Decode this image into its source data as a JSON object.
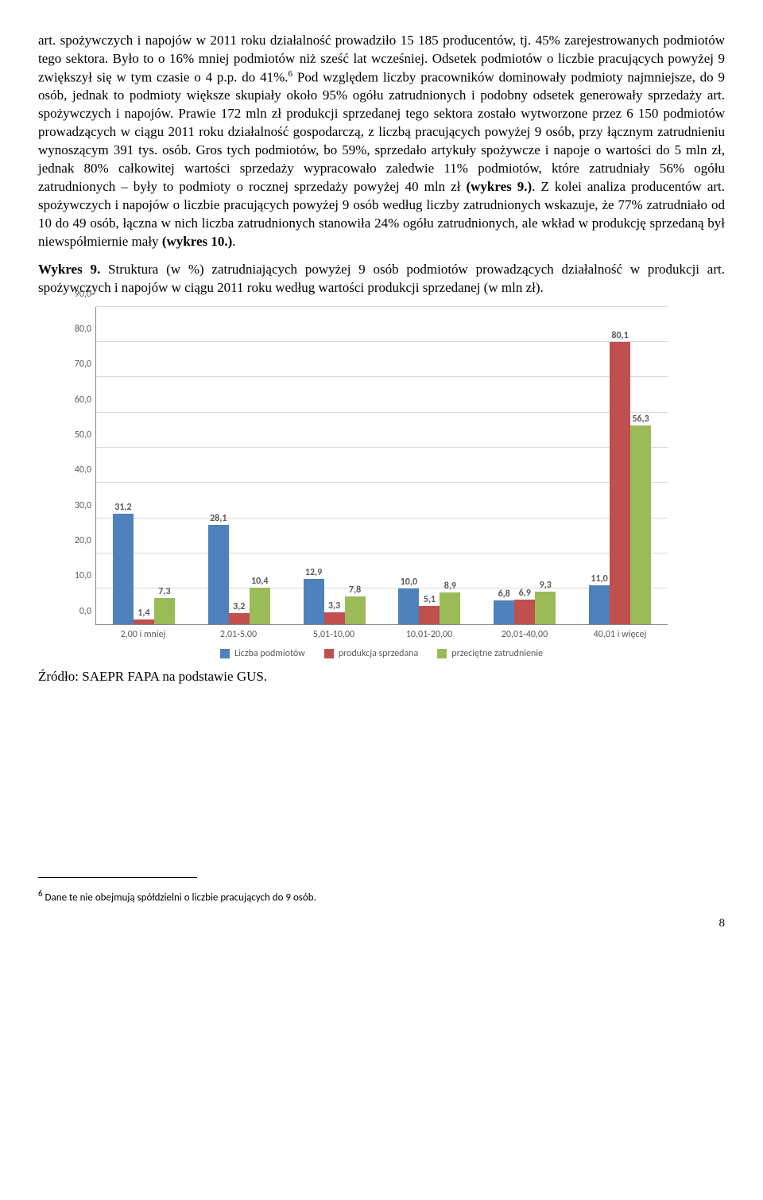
{
  "paragraphs": {
    "p1_a": "art. spożywczych i napojów w 2011 roku działalność prowadziło 15 185 producentów, tj. 45% zarejestrowanych podmiotów tego sektora. Było to o 16% mniej podmiotów niż sześć lat wcześniej. Odsetek podmiotów o liczbie pracujących powyżej 9 zwiększył się w tym czasie o 4 p.p. do 41%.",
    "p1_b": "Pod względem liczby pracowników dominowały podmioty najmniejsze, do 9 osób, jednak to podmioty większe skupiały około 95% ogółu zatrudnionych i podobny odsetek generowały sprzedaży art. spożywczych i napojów. Prawie 172 mln zł produkcji sprzedanej tego sektora zostało wytworzone przez 6 150 podmiotów prowadzących w ciągu 2011 roku działalność gospodarczą, z liczbą pracujących powyżej 9 osób, przy łącznym zatrudnieniu wynoszącym 391 tys. osób. Gros tych podmiotów, bo 59%, sprzedało artykuły spożywcze i napoje o wartości do 5 mln zł, jednak 80% całkowitej wartości sprzedaży wypracowało zaledwie 11% podmiotów, które zatrudniały 56% ogółu zatrudnionych – były to podmioty o rocznej sprzedaży powyżej 40 mln zł ",
    "p1_bold1": "(wykres 9.)",
    "p1_c": ". Z kolei analiza producentów art. spożywczych i napojów o liczbie pracujących powyżej 9 osób według liczby zatrudnionych wskazuje, że 77% zatrudniało od 10 do 49 osób, łączna w nich liczba zatrudnionych stanowiła 24% ogółu zatrudnionych, ale wkład w produkcję sprzedaną był niewspółmiernie mały ",
    "p1_bold2": "(wykres 10.)",
    "p1_d": ".",
    "p2_bold": "Wykres 9.",
    "p2_rest": " Struktura (w %) zatrudniających powyżej 9 osób podmiotów prowadzących działalność w produkcji art. spożywczych i napojów w ciągu 2011 roku według wartości produkcji sprzedanej (w mln zł).",
    "source": "Źródło: SAEPR FAPA na podstawie GUS.",
    "footnote_num": "6",
    "footnote_text": " Dane te nie obejmują spółdzielni o liczbie pracujących do 9 osób.",
    "page_num": "8",
    "sup6": "6"
  },
  "chart": {
    "type": "bar",
    "ylim": [
      0,
      90
    ],
    "ytick_step": 10,
    "yticks": [
      "0,0",
      "10,0",
      "20,0",
      "30,0",
      "40,0",
      "50,0",
      "60,0",
      "70,0",
      "80,0",
      "90,0"
    ],
    "grid_color": "#d9d9d9",
    "text_color": "#595959",
    "label_fontsize": 12,
    "series": [
      {
        "name": "Liczba podmiotów",
        "color": "#4f81bd"
      },
      {
        "name": "produkcja sprzedana",
        "color": "#c0504d"
      },
      {
        "name": "przeciętne zatrudnienie",
        "color": "#9bbb59"
      }
    ],
    "categories": [
      "2,00 i mniej",
      "2,01-5,00",
      "5,01-10,00",
      "10,01-20,00",
      "20,01-40,00",
      "40,01 i więcej"
    ],
    "data": [
      {
        "labels": [
          "31,2",
          "1,4",
          "7,3"
        ],
        "values": [
          31.2,
          1.4,
          7.3
        ]
      },
      {
        "labels": [
          "28,1",
          "3,2",
          "10,4"
        ],
        "values": [
          28.1,
          3.2,
          10.4
        ]
      },
      {
        "labels": [
          "12,9",
          "3,3",
          "7,8"
        ],
        "values": [
          12.9,
          3.3,
          7.8
        ]
      },
      {
        "labels": [
          "10,0",
          "5,1",
          "8,9"
        ],
        "values": [
          10.0,
          5.1,
          8.9
        ]
      },
      {
        "labels": [
          "6,8",
          "6,9",
          "9,3"
        ],
        "values": [
          6.8,
          6.9,
          9.3
        ]
      },
      {
        "labels": [
          "11,0",
          "80,1",
          "56,3"
        ],
        "values": [
          11.0,
          80.1,
          56.3
        ]
      }
    ]
  }
}
